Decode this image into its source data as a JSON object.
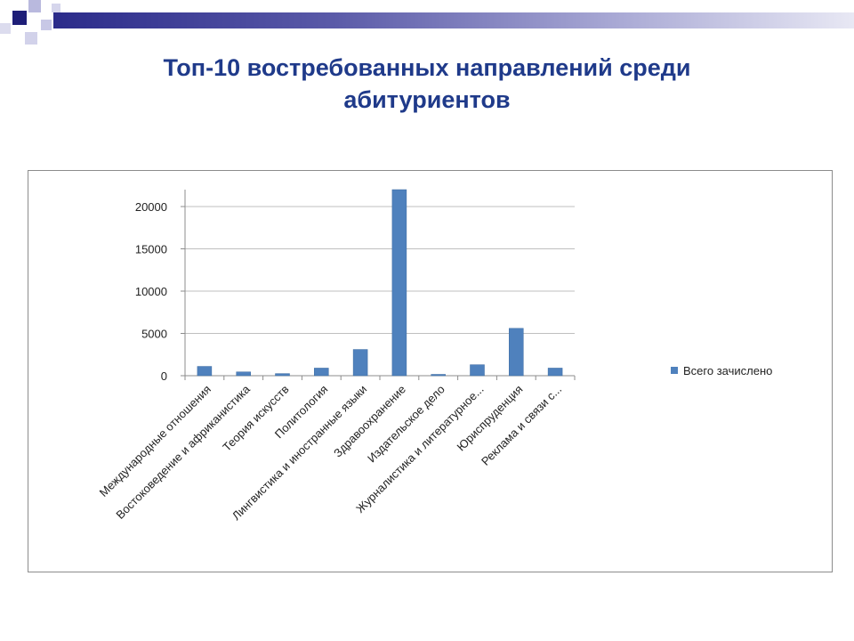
{
  "slide": {
    "title_line1": "Топ-10 востребованных направлений среди",
    "title_line2": "абитуриентов"
  },
  "colors": {
    "title": "#1f3a8a",
    "bar": "#4f81bd",
    "bar_edge": "#3a6aa0",
    "header_gradient_start": "#2b2b8a",
    "header_gradient_end": "#e8e8f4"
  },
  "chart_data": {
    "type": "bar",
    "title": "",
    "xlabel": "",
    "ylabel": "",
    "ylim": [
      0,
      22000
    ],
    "yticks": [
      0,
      5000,
      10000,
      15000,
      20000
    ],
    "grid": true,
    "legend_position": "right",
    "categories": [
      "Международные отношения",
      "Востоковедение и африканистика",
      "Теория искусств",
      "Политология",
      "Лингвистика и иностранные языки",
      "Здравоохранение",
      "Издательское дело",
      "Журналистика и литературное...",
      "Юриспруденция",
      "Реклама и связи с..."
    ],
    "series": [
      {
        "name": "Всего зачислено",
        "values": [
          1100,
          450,
          250,
          900,
          3100,
          22000,
          150,
          1300,
          5600,
          900
        ]
      }
    ]
  }
}
